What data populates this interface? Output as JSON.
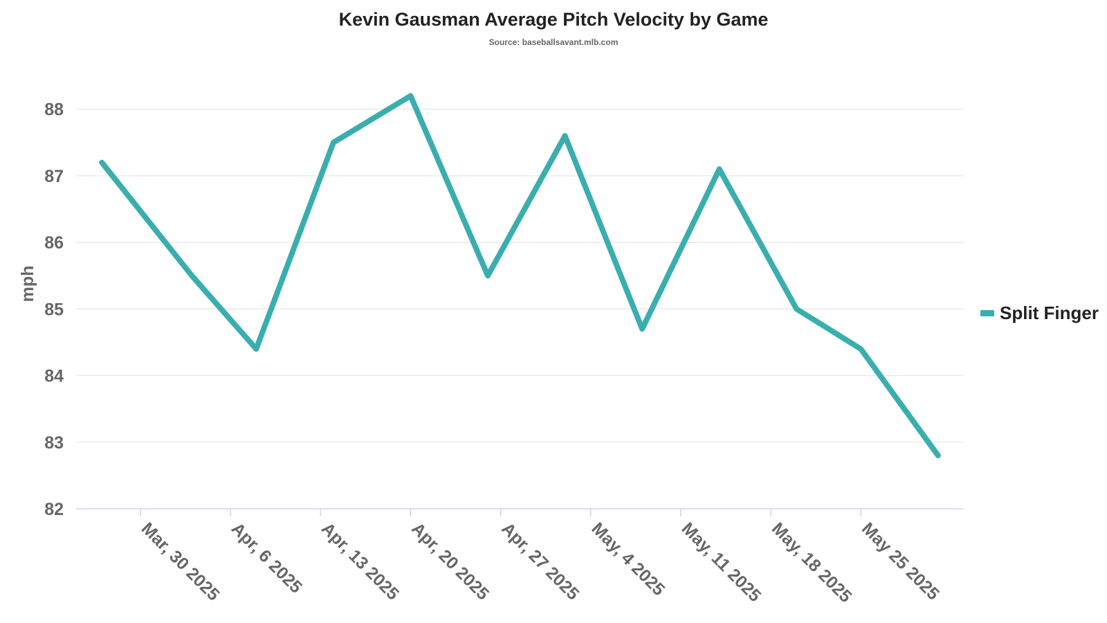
{
  "chart_data": {
    "type": "line",
    "title": "Kevin Gausman Average Pitch Velocity by Game",
    "subtitle": "Source: baseballsavant.mlb.com",
    "xlabel": "",
    "ylabel": "mph",
    "ylim": [
      82,
      88.6
    ],
    "yticks": [
      82,
      83,
      84,
      85,
      86,
      87,
      88
    ],
    "xlim": [
      "2025-03-25",
      "2025-06-02"
    ],
    "x_ticks": [
      {
        "date": "2025-03-30",
        "label": "Mar, 30 2025"
      },
      {
        "date": "2025-04-06",
        "label": "Apr, 6 2025"
      },
      {
        "date": "2025-04-13",
        "label": "Apr, 13 2025"
      },
      {
        "date": "2025-04-20",
        "label": "Apr, 20 2025"
      },
      {
        "date": "2025-04-27",
        "label": "Apr, 27 2025"
      },
      {
        "date": "2025-05-04",
        "label": "May, 4 2025"
      },
      {
        "date": "2025-05-11",
        "label": "May, 11 2025"
      },
      {
        "date": "2025-05-18",
        "label": "May, 18 2025"
      },
      {
        "date": "2025-05-25",
        "label": "May 25 2025"
      }
    ],
    "grid": true,
    "legend": "right",
    "series": [
      {
        "name": "Split Finger",
        "color": "#3aaeae",
        "points": [
          {
            "x": "2025-03-27",
            "y": 87.2
          },
          {
            "x": "2025-04-03",
            "y": 85.5
          },
          {
            "x": "2025-04-08",
            "y": 84.4
          },
          {
            "x": "2025-04-14",
            "y": 87.5
          },
          {
            "x": "2025-04-20",
            "y": 88.2
          },
          {
            "x": "2025-04-26",
            "y": 85.5
          },
          {
            "x": "2025-05-02",
            "y": 87.6
          },
          {
            "x": "2025-05-08",
            "y": 84.7
          },
          {
            "x": "2025-05-14",
            "y": 87.1
          },
          {
            "x": "2025-05-20",
            "y": 85.0
          },
          {
            "x": "2025-05-25",
            "y": 84.4
          },
          {
            "x": "2025-05-31",
            "y": 82.8
          }
        ]
      }
    ]
  }
}
